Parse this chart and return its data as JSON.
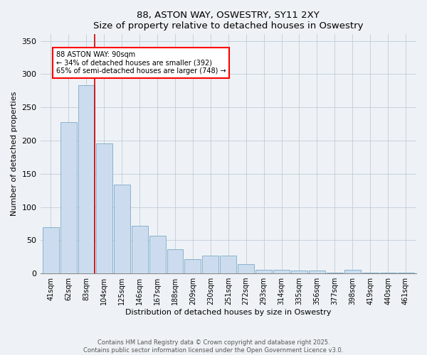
{
  "title1": "88, ASTON WAY, OSWESTRY, SY11 2XY",
  "title2": "Size of property relative to detached houses in Oswestry",
  "xlabel": "Distribution of detached houses by size in Oswestry",
  "ylabel": "Number of detached properties",
  "categories": [
    "41sqm",
    "62sqm",
    "83sqm",
    "104sqm",
    "125sqm",
    "146sqm",
    "167sqm",
    "188sqm",
    "209sqm",
    "230sqm",
    "251sqm",
    "272sqm",
    "293sqm",
    "314sqm",
    "335sqm",
    "356sqm",
    "377sqm",
    "398sqm",
    "419sqm",
    "440sqm",
    "461sqm"
  ],
  "values": [
    70,
    228,
    283,
    196,
    134,
    72,
    57,
    36,
    22,
    27,
    27,
    14,
    5,
    5,
    4,
    4,
    1,
    5,
    1,
    1,
    1
  ],
  "bar_color": "#ccdcee",
  "bar_edge_color": "#7aaac8",
  "annotation_text": "88 ASTON WAY: 90sqm\n← 34% of detached houses are smaller (392)\n65% of semi-detached houses are larger (748) →",
  "vline_color": "#cc0000",
  "ylim": [
    0,
    360
  ],
  "yticks": [
    0,
    50,
    100,
    150,
    200,
    250,
    300,
    350
  ],
  "footer": "Contains HM Land Registry data © Crown copyright and database right 2025.\nContains public sector information licensed under the Open Government Licence v3.0.",
  "background_color": "#eef2f6",
  "plot_background": "#eef2f6",
  "grid_color": "#c0ccd8"
}
